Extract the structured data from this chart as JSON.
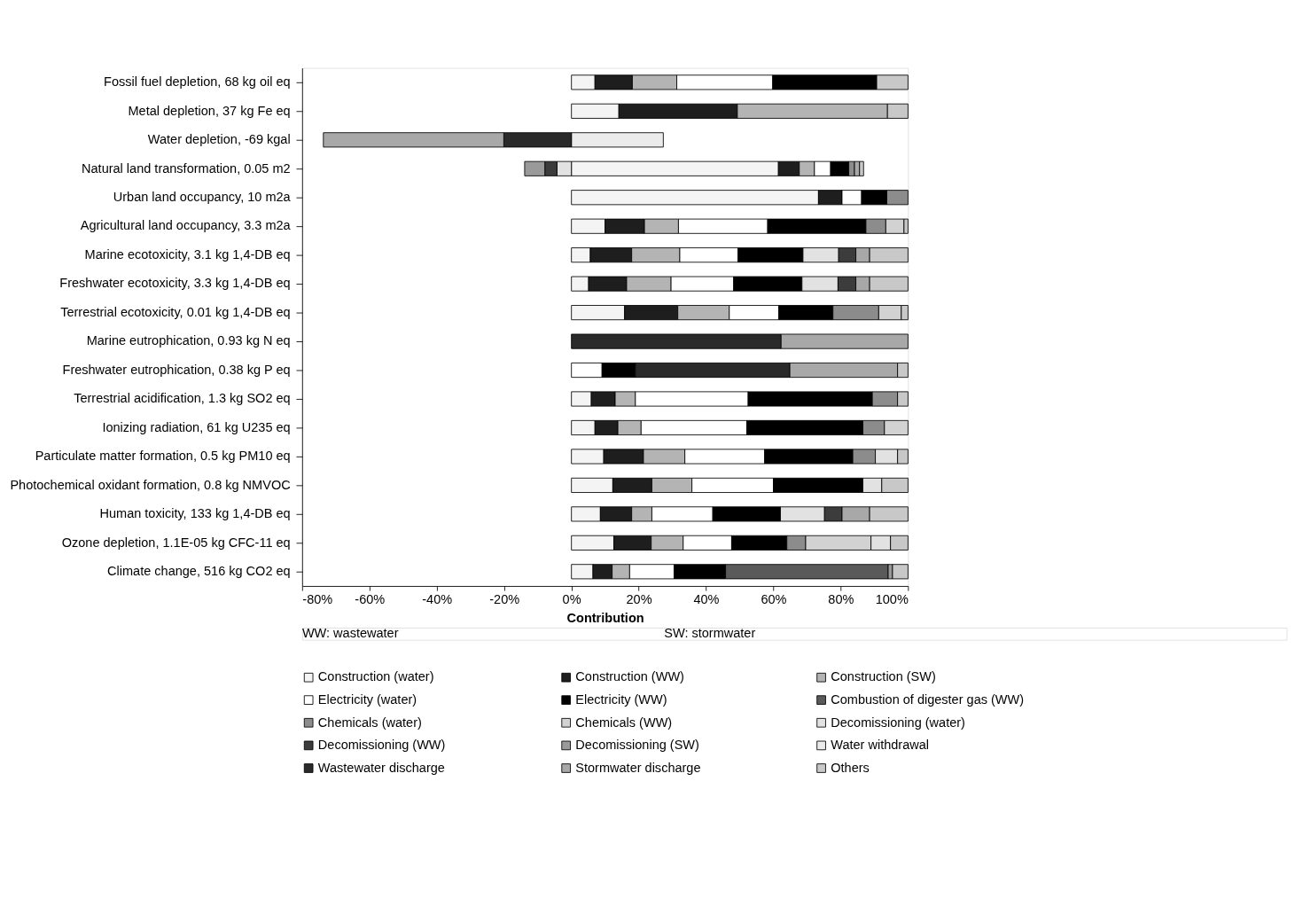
{
  "chart_data": {
    "type": "bar",
    "orientation": "horizontal",
    "stacked": true,
    "xlabel": "Contribution",
    "grid": false,
    "legend": "bottom",
    "categories": [
      "Fossil fuel depletion, 68 kg oil eq",
      "Metal depletion, 37 kg Fe eq",
      "Water depletion, -69 kgal",
      "Natural land transformation, 0.05 m2",
      "Urban land occupancy, 10 m2a",
      "Agricultural land occupancy, 3.3 m2a",
      "Marine ecotoxicity, 3.1 kg 1,4-DB eq",
      "Freshwater ecotoxicity, 3.3 kg 1,4-DB eq",
      "Terrestrial ecotoxicity, 0.01 kg 1,4-DB eq",
      "Marine eutrophication, 0.93 kg N eq",
      "Freshwater eutrophication, 0.38 kg P eq",
      "Terrestrial acidification, 1.3 kg SO2 eq",
      "Ionizing radiation, 61 kg U235 eq",
      "Particulate matter formation, 0.5 kg PM10 eq",
      "Photochemical oxidant formation, 0.8 kg NMVOC",
      "Human toxicity, 133 kg 1,4-DB eq",
      "Ozone depletion, 1.1E-05 kg CFC-11 eq",
      "Climate change, 516 kg CO2 eq"
    ],
    "xlim": [
      -80,
      100
    ],
    "xticks": [
      {
        "value": -80,
        "label": "-80%"
      },
      {
        "value": -60,
        "label": "-60%"
      },
      {
        "value": -40,
        "label": "-40%"
      },
      {
        "value": -20,
        "label": "-20%"
      },
      {
        "value": 0,
        "label": "0%"
      },
      {
        "value": 20,
        "label": "20%"
      },
      {
        "value": 40,
        "label": "40%"
      },
      {
        "value": 60,
        "label": "60%"
      },
      {
        "value": 80,
        "label": "80%"
      },
      {
        "value": 100,
        "label": "100%"
      }
    ],
    "series": [
      {
        "name": "Construction (water)",
        "color": "#f4f4f4",
        "values": [
          7.0,
          14.1,
          null,
          61.5,
          73.4,
          10.0,
          5.6,
          5.1,
          15.8,
          null,
          null,
          5.9,
          7.0,
          9.6,
          12.3,
          8.6,
          12.6,
          6.4
        ]
      },
      {
        "name": "Construction (WW)",
        "color": "#1e1e1e",
        "values": [
          11.1,
          35.2,
          null,
          6.2,
          7.0,
          11.7,
          12.3,
          11.3,
          15.8,
          null,
          null,
          7.1,
          6.8,
          11.8,
          11.6,
          9.3,
          11.1,
          5.7
        ]
      },
      {
        "name": "Construction (SW)",
        "color": "#b4b4b4",
        "values": [
          13.2,
          44.6,
          null,
          4.5,
          null,
          10.1,
          14.3,
          13.2,
          15.3,
          null,
          null,
          6.0,
          6.9,
          12.3,
          11.9,
          6.0,
          9.5,
          5.2
        ]
      },
      {
        "name": "Electricity (water)",
        "color": "#ffffff",
        "values": [
          28.5,
          null,
          null,
          4.8,
          5.8,
          26.5,
          17.3,
          18.6,
          14.7,
          null,
          9.1,
          33.5,
          31.4,
          23.7,
          24.2,
          18.1,
          14.4,
          13.2
        ]
      },
      {
        "name": "Electricity (WW)",
        "color": "#000000",
        "values": [
          30.9,
          null,
          null,
          5.4,
          7.5,
          29.2,
          19.3,
          20.3,
          16.1,
          null,
          9.9,
          36.9,
          34.5,
          26.2,
          26.6,
          20.1,
          16.4,
          15.3
        ]
      },
      {
        "name": "Combustion of digester gas (WW)",
        "color": "#5a5a5a",
        "values": [
          null,
          null,
          null,
          null,
          null,
          null,
          null,
          null,
          null,
          null,
          null,
          null,
          null,
          null,
          null,
          null,
          null,
          48.3
        ]
      },
      {
        "name": "Chemicals (water)",
        "color": "#8c8c8c",
        "values": [
          null,
          null,
          null,
          1.7,
          6.3,
          5.9,
          null,
          null,
          13.6,
          null,
          null,
          7.5,
          6.4,
          6.7,
          null,
          null,
          5.6,
          null
        ]
      },
      {
        "name": "Chemicals (WW)",
        "color": "#d2d2d2",
        "values": [
          null,
          null,
          null,
          null,
          null,
          5.4,
          null,
          null,
          6.7,
          null,
          null,
          null,
          7.0,
          null,
          null,
          null,
          19.4,
          null
        ]
      },
      {
        "name": "Decomissioning (water)",
        "color": "#e2e2e2",
        "values": [
          null,
          null,
          null,
          -4.3,
          null,
          null,
          10.6,
          10.7,
          null,
          null,
          null,
          null,
          null,
          6.6,
          5.6,
          13.1,
          5.8,
          null
        ]
      },
      {
        "name": "Decomissioning (WW)",
        "color": "#3c3c3c",
        "values": [
          null,
          null,
          null,
          -3.6,
          null,
          null,
          5.1,
          5.3,
          null,
          null,
          null,
          null,
          null,
          null,
          null,
          5.2,
          null,
          null
        ]
      },
      {
        "name": "Decomissioning (SW)",
        "color": "#9a9a9a",
        "values": [
          null,
          null,
          null,
          -6.0,
          null,
          null,
          null,
          null,
          null,
          null,
          null,
          null,
          null,
          null,
          null,
          null,
          null,
          1.3
        ]
      },
      {
        "name": "Water withdrawal",
        "color": "#ebebeb",
        "values": [
          null,
          null,
          27.3,
          null,
          null,
          null,
          null,
          null,
          null,
          null,
          null,
          null,
          null,
          null,
          null,
          null,
          null,
          null
        ]
      },
      {
        "name": "Wastewater discharge",
        "color": "#2a2a2a",
        "values": [
          null,
          null,
          -20.1,
          null,
          null,
          null,
          null,
          null,
          null,
          62.3,
          45.9,
          null,
          null,
          null,
          null,
          null,
          null,
          null
        ]
      },
      {
        "name": "Stormwater discharge",
        "color": "#a8a8a8",
        "values": [
          null,
          null,
          -53.6,
          1.5,
          null,
          null,
          4.1,
          4.1,
          null,
          37.7,
          32.0,
          null,
          null,
          null,
          null,
          8.2,
          null,
          null
        ]
      },
      {
        "name": "Others",
        "color": "#c8c8c8",
        "values": [
          9.3,
          6.1,
          null,
          1.2,
          null,
          1.2,
          11.4,
          11.4,
          2.0,
          null,
          3.1,
          3.1,
          null,
          3.1,
          7.8,
          11.4,
          5.2,
          4.6
        ]
      }
    ],
    "annotations": [
      "WW: wastewater",
      "SW: stormwater"
    ]
  }
}
